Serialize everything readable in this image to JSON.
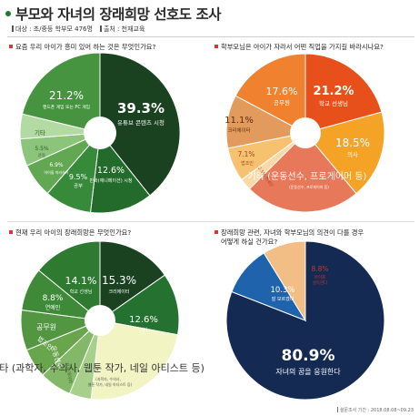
{
  "header": {
    "title": "부모와 자녀의 장래희망 선호도 조사",
    "target_label": "대상 : 초/중등 학부모 476명",
    "source_label": "출처 : 천재교육"
  },
  "footnote": "설문조사 기간 : 2018.08.08~09.23",
  "questions": [
    "요즘 우리 아이가 흥미 있어 하는 것은 무엇인가요?",
    "학부모님은 아이가 자라서 어떤 직업을 가지길 바라시나요?",
    "현재 우리 아이의 장래희망은 무엇인가요?",
    "장래희망 관련, 자녀와 학부모님의 의견이 다를 경우",
    "어떻게 하실 건가요?"
  ],
  "chart_data": [
    {
      "type": "pie",
      "title": "요즘 우리 아이가 흥미 있어 하는 것은 무엇인가요?",
      "slices": [
        {
          "label": "유튜브 콘텐츠 시청",
          "value": 39.3,
          "color": "#1a4120"
        },
        {
          "label": "만화(애니메이션) 시청",
          "value": 12.6,
          "color": "#236b2b"
        },
        {
          "label": "공부",
          "value": 9.5,
          "color": "#368a3a"
        },
        {
          "label": "아이돌 따라하기",
          "value": 6.9,
          "color": "#62a853"
        },
        {
          "label": "운동",
          "value": 5.5,
          "color": "#8bc47a"
        },
        {
          "label": "기타",
          "value": 5.0,
          "color": "#b4daa3"
        },
        {
          "label": "핸드폰 게임 또는 PC 게임",
          "value": 21.2,
          "color": "#46943f"
        }
      ],
      "value_labels": [
        "39.3%",
        "12.6%",
        "9.5%",
        "6.9%",
        "5.5%",
        "",
        "21.2%"
      ]
    },
    {
      "type": "pie",
      "title": "학부모님은 아이가 자라서 어떤 직업을 가지길 바라시나요?",
      "slices": [
        {
          "label": "학교 선생님",
          "value": 21.2,
          "color": "#e8501b"
        },
        {
          "label": "의사",
          "value": 18.5,
          "color": "#f5a326"
        },
        {
          "label": "기타 (운동선수, 프로게이머 등)",
          "value": 24.1,
          "color": "#e8785a"
        },
        {
          "label": "연예인",
          "value": 2.5,
          "color": "#fbd9a6"
        },
        {
          "label": "법조인",
          "value": 7.1,
          "color": "#f6c270"
        },
        {
          "label": "크리에이터",
          "value": 11.1,
          "color": "#e39b5d"
        },
        {
          "label": "공무원",
          "value": 17.6,
          "color": "#f0822f"
        }
      ],
      "value_labels": [
        "21.2%",
        "18.5%",
        "",
        "2.5%",
        "7.1%",
        "11.1%",
        "17.6%"
      ]
    },
    {
      "type": "pie",
      "title": "현재 우리 아이의 장래희망은 무엇인가요?",
      "slices": [
        {
          "label": "크리에이터",
          "value": 15.3,
          "color": "#1a4120"
        },
        {
          "label": "의사",
          "value": 12.6,
          "color": "#25712f"
        },
        {
          "label": "기타 (과학자, 수의사, 웹툰 작가, 네일 아티스트 등)",
          "value": 23.9,
          "color": "#f2f4c4"
        },
        {
          "label": "프로게이머",
          "value": 4.5,
          "color": "#a9cf8c"
        },
        {
          "label": "운동선수",
          "value": 6.6,
          "color": "#82b867"
        },
        {
          "label": "법조인",
          "value": 6.0,
          "color": "#69a54d"
        },
        {
          "label": "공무원",
          "value": 8.2,
          "color": "#539641"
        },
        {
          "label": "연예인",
          "value": 8.8,
          "color": "#3f8a38"
        },
        {
          "label": "학교 선생님",
          "value": 14.1,
          "color": "#2e7a31"
        }
      ],
      "value_labels": [
        "15.3%",
        "12.6%",
        "",
        "",
        "",
        "",
        "",
        "8.8%",
        "14.1%"
      ]
    },
    {
      "type": "pie",
      "title": "장래희망 관련, 자녀와 학부모님의 의견이 다를 경우 어떻게 하실 건가요?",
      "slices": [
        {
          "label": "자녀의 꿈을 응원한다",
          "value": 80.9,
          "color": "#142a52"
        },
        {
          "label": "잘 모르겠다",
          "value": 10.3,
          "color": "#1f63ad"
        },
        {
          "label": "아이를 설득한다",
          "value": 8.8,
          "color": "#f3be85"
        }
      ],
      "value_labels": [
        "80.9%",
        "10.3%",
        "8.8%"
      ]
    }
  ]
}
